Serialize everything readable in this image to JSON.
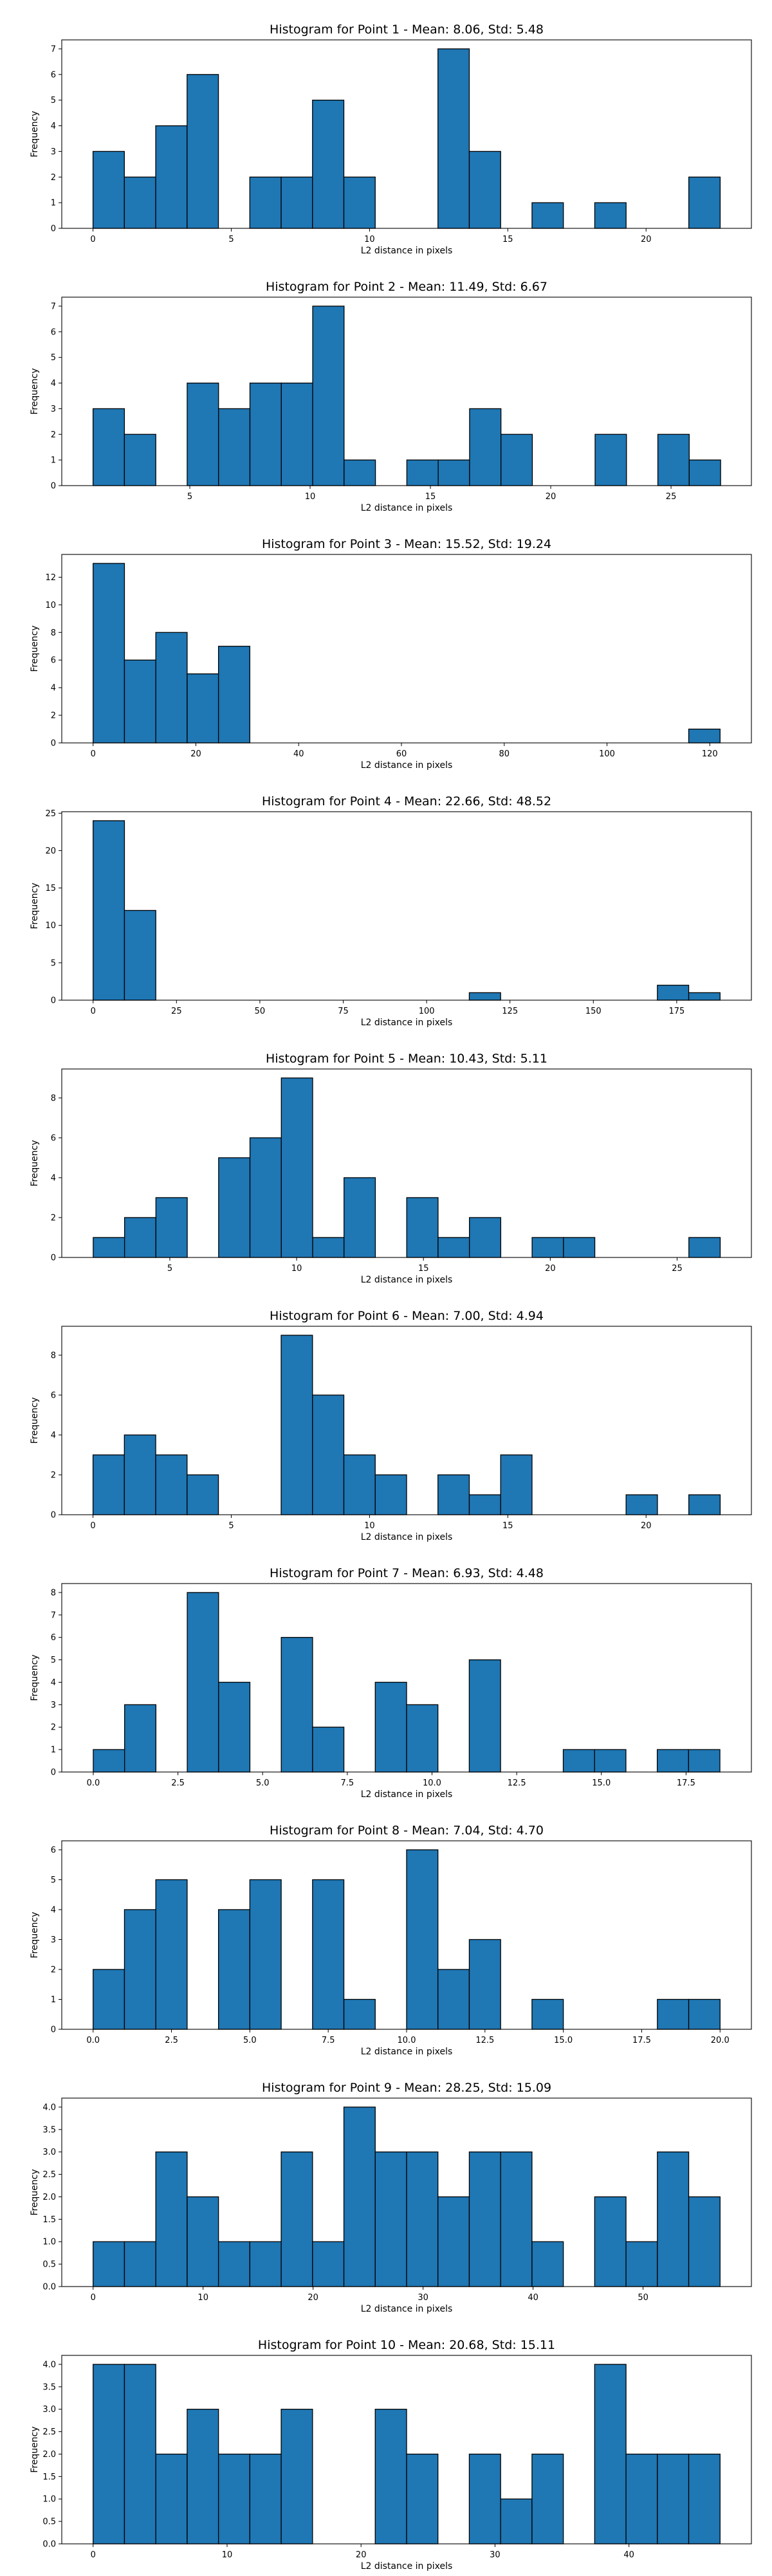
{
  "chart_data": [
    {
      "type": "bar",
      "title": "Histogram for Point 1 - Mean: 8.06, Std: 5.48",
      "xlabel": "L2 distance in pixels",
      "ylabel": "Frequency",
      "bin_start": 0,
      "bin_width": 1.134,
      "values": [
        3,
        2,
        4,
        6,
        0,
        2,
        2,
        5,
        2,
        0,
        0,
        7,
        3,
        0,
        1,
        0,
        1,
        0,
        0,
        2
      ],
      "xlim": [
        -1.13,
        23.81
      ],
      "ylim": [
        0,
        7.35
      ],
      "xticks": [
        0,
        5,
        10,
        15,
        20
      ],
      "yticks": [
        0,
        1,
        2,
        3,
        4,
        5,
        6,
        7
      ]
    },
    {
      "type": "bar",
      "title": "Histogram for Point 2 - Mean: 11.49, Std: 6.67",
      "xlabel": "L2 distance in pixels",
      "ylabel": "Frequency",
      "bin_start": 0.98,
      "bin_width": 1.304,
      "values": [
        3,
        2,
        0,
        4,
        3,
        4,
        4,
        7,
        1,
        0,
        1,
        1,
        3,
        2,
        0,
        0,
        2,
        0,
        2,
        1
      ],
      "xlim": [
        -0.32,
        28.34
      ],
      "ylim": [
        0,
        7.35
      ],
      "xticks": [
        5,
        10,
        15,
        20,
        25
      ],
      "yticks": [
        0,
        1,
        2,
        3,
        4,
        5,
        6,
        7
      ]
    },
    {
      "type": "bar",
      "title": "Histogram for Point 3 - Mean: 15.52, Std: 19.24",
      "xlabel": "L2 distance in pixels",
      "ylabel": "Frequency",
      "bin_start": 0,
      "bin_width": 6.1,
      "values": [
        13,
        6,
        8,
        5,
        7,
        0,
        0,
        0,
        0,
        0,
        0,
        0,
        0,
        0,
        0,
        0,
        0,
        0,
        0,
        1
      ],
      "xlim": [
        -6.1,
        128.1
      ],
      "ylim": [
        0,
        13.65
      ],
      "xticks": [
        0,
        20,
        40,
        60,
        80,
        100,
        120
      ],
      "yticks": [
        0,
        2,
        4,
        6,
        8,
        10,
        12
      ]
    },
    {
      "type": "bar",
      "title": "Histogram for Point 4 - Mean: 22.66, Std: 48.52",
      "xlabel": "L2 distance in pixels",
      "ylabel": "Frequency",
      "bin_start": 0,
      "bin_width": 9.4,
      "values": [
        24,
        12,
        0,
        0,
        0,
        0,
        0,
        0,
        0,
        0,
        0,
        0,
        1,
        0,
        0,
        0,
        0,
        0,
        2,
        1
      ],
      "xlim": [
        -9.4,
        197.4
      ],
      "ylim": [
        0,
        25.2
      ],
      "xticks": [
        0,
        25,
        50,
        75,
        100,
        125,
        150,
        175
      ],
      "yticks": [
        0,
        5,
        10,
        15,
        20,
        25
      ]
    },
    {
      "type": "bar",
      "title": "Histogram for Point 5 - Mean: 10.43, Std: 5.11",
      "xlabel": "L2 distance in pixels",
      "ylabel": "Frequency",
      "bin_start": 1.98,
      "bin_width": 1.236,
      "values": [
        1,
        2,
        3,
        0,
        5,
        6,
        9,
        1,
        4,
        0,
        3,
        1,
        2,
        0,
        1,
        1,
        0,
        0,
        0,
        1
      ],
      "xlim": [
        0.74,
        27.93
      ],
      "ylim": [
        0,
        9.45
      ],
      "xticks": [
        5,
        10,
        15,
        20,
        25
      ],
      "yticks": [
        0,
        2,
        4,
        6,
        8
      ]
    },
    {
      "type": "bar",
      "title": "Histogram for Point 6 - Mean: 7.00, Std: 4.94",
      "xlabel": "L2 distance in pixels",
      "ylabel": "Frequency",
      "bin_start": 0,
      "bin_width": 1.134,
      "values": [
        3,
        4,
        3,
        2,
        0,
        0,
        9,
        6,
        3,
        2,
        0,
        2,
        1,
        3,
        0,
        0,
        0,
        1,
        0,
        1
      ],
      "xlim": [
        -1.13,
        23.81
      ],
      "ylim": [
        0,
        9.45
      ],
      "xticks": [
        0,
        5,
        10,
        15,
        20
      ],
      "yticks": [
        0,
        2,
        4,
        6,
        8
      ]
    },
    {
      "type": "bar",
      "title": "Histogram for Point 7 - Mean: 6.93, Std: 4.48",
      "xlabel": "L2 distance in pixels",
      "ylabel": "Frequency",
      "bin_start": 0,
      "bin_width": 0.925,
      "values": [
        1,
        3,
        0,
        8,
        4,
        0,
        6,
        2,
        0,
        4,
        3,
        0,
        5,
        0,
        0,
        1,
        1,
        0,
        1,
        1
      ],
      "xlim": [
        -0.93,
        19.43
      ],
      "ylim": [
        0,
        8.4
      ],
      "xticks": [
        "0.0",
        "2.5",
        "5.0",
        "7.5",
        "10.0",
        "12.5",
        "15.0",
        "17.5"
      ],
      "yticks": [
        0,
        1,
        2,
        3,
        4,
        5,
        6,
        7,
        8
      ]
    },
    {
      "type": "bar",
      "title": "Histogram for Point 8 - Mean: 7.04, Std: 4.70",
      "xlabel": "L2 distance in pixels",
      "ylabel": "Frequency",
      "bin_start": 0,
      "bin_width": 1.0,
      "values": [
        2,
        4,
        5,
        0,
        4,
        5,
        0,
        5,
        1,
        0,
        6,
        2,
        3,
        0,
        1,
        0,
        0,
        0,
        1,
        1
      ],
      "xlim": [
        -1.0,
        21.0
      ],
      "ylim": [
        0,
        6.3
      ],
      "xticks": [
        "0.0",
        "2.5",
        "5.0",
        "7.5",
        "10.0",
        "12.5",
        "15.0",
        "17.5",
        "20.0"
      ],
      "yticks": [
        0,
        1,
        2,
        3,
        4,
        5,
        6
      ]
    },
    {
      "type": "bar",
      "title": "Histogram for Point 9 - Mean: 28.25, Std: 15.09",
      "xlabel": "L2 distance in pixels",
      "ylabel": "Frequency",
      "bin_start": 0,
      "bin_width": 2.85,
      "values": [
        1,
        1,
        3,
        2,
        1,
        1,
        3,
        1,
        4,
        3,
        3,
        2,
        3,
        3,
        1,
        0,
        2,
        1,
        3,
        2
      ],
      "xlim": [
        -2.85,
        59.85
      ],
      "ylim": [
        0,
        4.2
      ],
      "xticks": [
        0,
        10,
        20,
        30,
        40,
        50
      ],
      "yticks": [
        "0.0",
        "0.5",
        "1.0",
        "1.5",
        "2.0",
        "2.5",
        "3.0",
        "3.5",
        "4.0"
      ]
    },
    {
      "type": "bar",
      "title": "Histogram for Point 10 - Mean: 20.68, Std: 15.11",
      "xlabel": "L2 distance in pixels",
      "ylabel": "Frequency",
      "bin_start": 0,
      "bin_width": 2.34,
      "values": [
        4,
        4,
        2,
        3,
        2,
        2,
        3,
        0,
        0,
        3,
        2,
        0,
        2,
        1,
        2,
        0,
        4,
        2,
        2,
        2
      ],
      "xlim": [
        -2.34,
        49.14
      ],
      "ylim": [
        0,
        4.2
      ],
      "xticks": [
        0,
        10,
        20,
        30,
        40
      ],
      "yticks": [
        "0.0",
        "0.5",
        "1.0",
        "1.5",
        "2.0",
        "2.5",
        "3.0",
        "3.5",
        "4.0"
      ]
    }
  ],
  "colors": {
    "bar_fill": "#1f77b4",
    "bar_edge": "#000000",
    "axes": "#000000"
  }
}
